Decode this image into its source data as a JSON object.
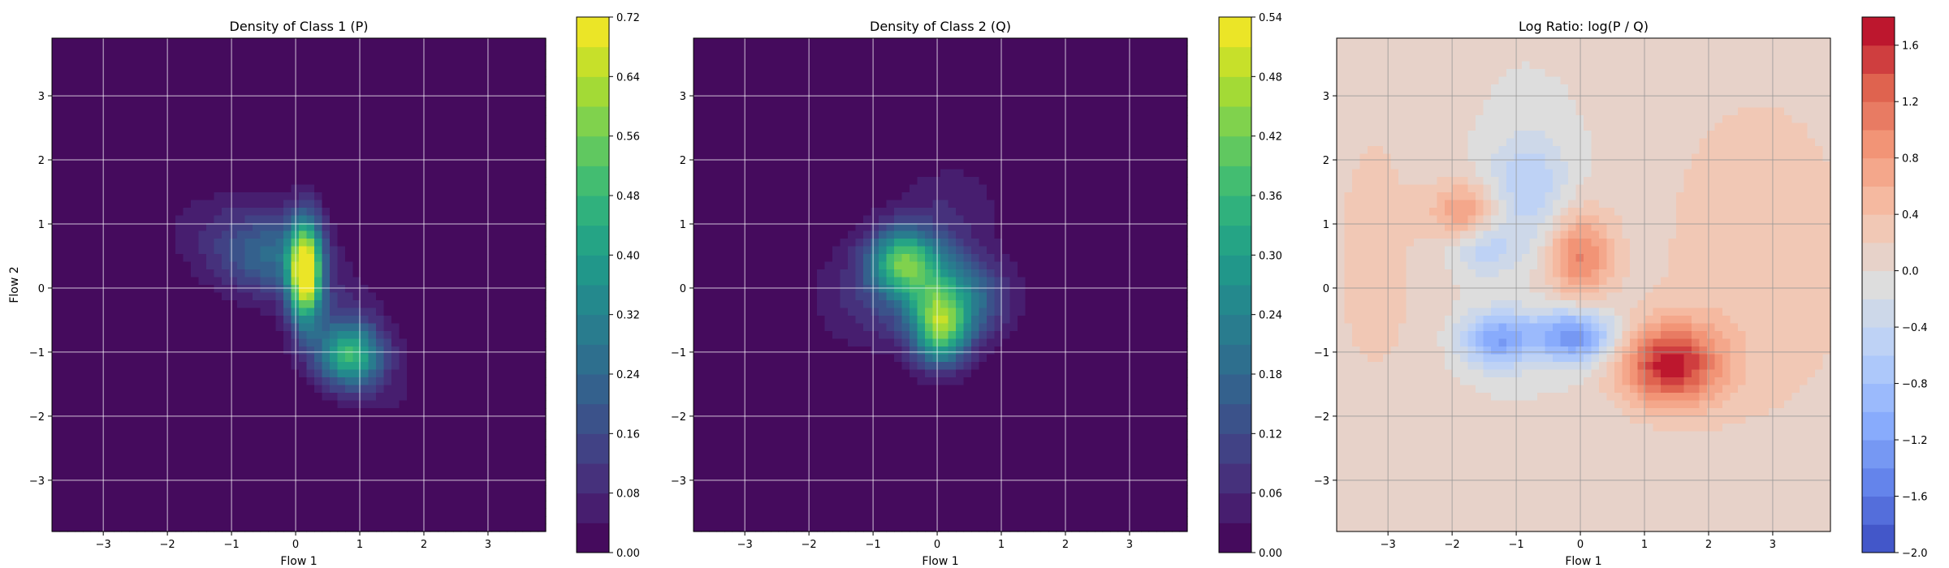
{
  "chart_data": [
    {
      "type": "heatmap",
      "title": "Density of Class 1 (P)",
      "xlabel": "Flow 1",
      "ylabel": "Flow 2",
      "xlim": [
        -3.8,
        3.9
      ],
      "ylim": [
        -3.8,
        3.9
      ],
      "xticks": [
        -3,
        -2,
        -1,
        0,
        1,
        2,
        3
      ],
      "yticks": [
        -3,
        -2,
        -1,
        0,
        1,
        2,
        3
      ],
      "grid": true,
      "colormap": "viridis",
      "colorbar": {
        "range": [
          0.0,
          0.72
        ],
        "ticks": [
          "0.00",
          "0.08",
          "0.16",
          "0.24",
          "0.32",
          "0.40",
          "0.48",
          "0.56",
          "0.64",
          "0.72"
        ],
        "levels": 18
      },
      "blobs": [
        {
          "x": 0.15,
          "y": 0.25,
          "peak": 0.72,
          "sx": 0.18,
          "sy": 0.55
        },
        {
          "x": 0.85,
          "y": -1.05,
          "peak": 0.45,
          "sx": 0.35,
          "sy": 0.35
        },
        {
          "x": -0.4,
          "y": 0.5,
          "peak": 0.22,
          "sx": 0.55,
          "sy": 0.45
        },
        {
          "x": -1.2,
          "y": 0.9,
          "peak": 0.06,
          "sx": 0.7,
          "sy": 0.5
        },
        {
          "x": 0.6,
          "y": -0.4,
          "peak": 0.08,
          "sx": 0.5,
          "sy": 0.5
        },
        {
          "x": 1.5,
          "y": -1.6,
          "peak": 0.04,
          "sx": 0.5,
          "sy": 0.5
        }
      ]
    },
    {
      "type": "heatmap",
      "title": "Density of Class 2 (Q)",
      "xlabel": "Flow 1",
      "ylabel": "",
      "xlim": [
        -3.8,
        3.9
      ],
      "ylim": [
        -3.8,
        3.9
      ],
      "xticks": [
        -3,
        -2,
        -1,
        0,
        1,
        2,
        3
      ],
      "yticks": [
        -3,
        -2,
        -1,
        0,
        1,
        2,
        3
      ],
      "grid": true,
      "colormap": "viridis",
      "colorbar": {
        "range": [
          0.0,
          0.54
        ],
        "ticks": [
          "0.00",
          "0.06",
          "0.12",
          "0.18",
          "0.24",
          "0.30",
          "0.36",
          "0.42",
          "0.48",
          "0.54"
        ],
        "levels": 18
      },
      "blobs": [
        {
          "x": 0.05,
          "y": -0.65,
          "peak": 0.36,
          "sx": 0.3,
          "sy": 0.4
        },
        {
          "x": -0.55,
          "y": 0.45,
          "peak": 0.3,
          "sx": 0.35,
          "sy": 0.35
        },
        {
          "x": -0.1,
          "y": 0.05,
          "peak": 0.2,
          "sx": 0.5,
          "sy": 0.5
        },
        {
          "x": 0.6,
          "y": -0.2,
          "peak": 0.12,
          "sx": 0.45,
          "sy": 0.45
        },
        {
          "x": -1.1,
          "y": -0.1,
          "peak": 0.07,
          "sx": 0.6,
          "sy": 0.6
        },
        {
          "x": 0.2,
          "y": 1.3,
          "peak": 0.05,
          "sx": 0.6,
          "sy": 0.5
        }
      ]
    },
    {
      "type": "heatmap",
      "title": "Log Ratio: log(P / Q)",
      "xlabel": "Flow 1",
      "ylabel": "",
      "xlim": [
        -3.8,
        3.9
      ],
      "ylim": [
        -3.8,
        3.9
      ],
      "xticks": [
        -3,
        -2,
        -1,
        0,
        1,
        2,
        3
      ],
      "yticks": [
        -3,
        -2,
        -1,
        0,
        1,
        2,
        3
      ],
      "grid": true,
      "colormap": "coolwarm",
      "colorbar": {
        "range": [
          -2.0,
          1.8
        ],
        "ticks": [
          "−2.0",
          "−1.6",
          "−1.2",
          "−0.8",
          "−0.4",
          "0.0",
          "0.4",
          "0.8",
          "1.2",
          "1.6"
        ],
        "tick_values": [
          -2.0,
          -1.6,
          -1.2,
          -0.8,
          -0.4,
          0.0,
          0.4,
          0.8,
          1.2,
          1.6
        ],
        "levels": 19
      },
      "blobs": [
        {
          "x": 1.4,
          "y": -1.2,
          "peak": 1.6,
          "sx": 0.55,
          "sy": 0.45
        },
        {
          "x": 0.0,
          "y": 0.5,
          "peak": 1.0,
          "sx": 0.35,
          "sy": 0.5
        },
        {
          "x": -1.8,
          "y": 1.2,
          "peak": 0.8,
          "sx": 0.35,
          "sy": 0.3
        },
        {
          "x": -0.1,
          "y": -0.75,
          "peak": -1.4,
          "sx": 0.45,
          "sy": 0.3
        },
        {
          "x": -1.3,
          "y": -0.8,
          "peak": -1.2,
          "sx": 0.4,
          "sy": 0.3
        },
        {
          "x": -0.8,
          "y": 1.6,
          "peak": -0.6,
          "sx": 0.45,
          "sy": 0.6
        },
        {
          "x": -1.5,
          "y": 0.6,
          "peak": -0.5,
          "sx": 0.4,
          "sy": 0.3
        },
        {
          "x": 2.8,
          "y": 0.5,
          "peak": 0.35,
          "sx": 1.3,
          "sy": 2.2
        },
        {
          "x": -3.2,
          "y": 0.5,
          "peak": 0.25,
          "sx": 0.8,
          "sy": 2.5
        }
      ]
    }
  ]
}
